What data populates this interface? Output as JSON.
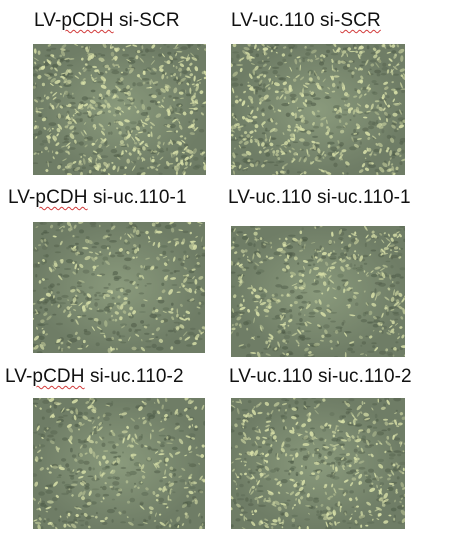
{
  "panels": [
    {
      "prefix": "LV-",
      "underlined": "pCDH",
      "suffix": " si-SCR"
    },
    {
      "prefix": "LV-uc.110 si-",
      "underlined": "SCR",
      "suffix": ""
    },
    {
      "prefix": "LV-",
      "underlined": "pCDH",
      "suffix": " si-uc.110-1"
    },
    {
      "prefix": "LV-uc.110 si-uc.110-1",
      "underlined": "",
      "suffix": ""
    },
    {
      "prefix": "LV-",
      "underlined": "pCDH",
      "suffix": " si-uc.110-2"
    },
    {
      "prefix": "LV-uc.110 si-uc.110-2",
      "underlined": "",
      "suffix": ""
    }
  ],
  "colors": {
    "spellcheck_underline": "#d23b3b",
    "micrograph_background": "#6f7d66",
    "cell_highlight": "#d8e0a8"
  }
}
